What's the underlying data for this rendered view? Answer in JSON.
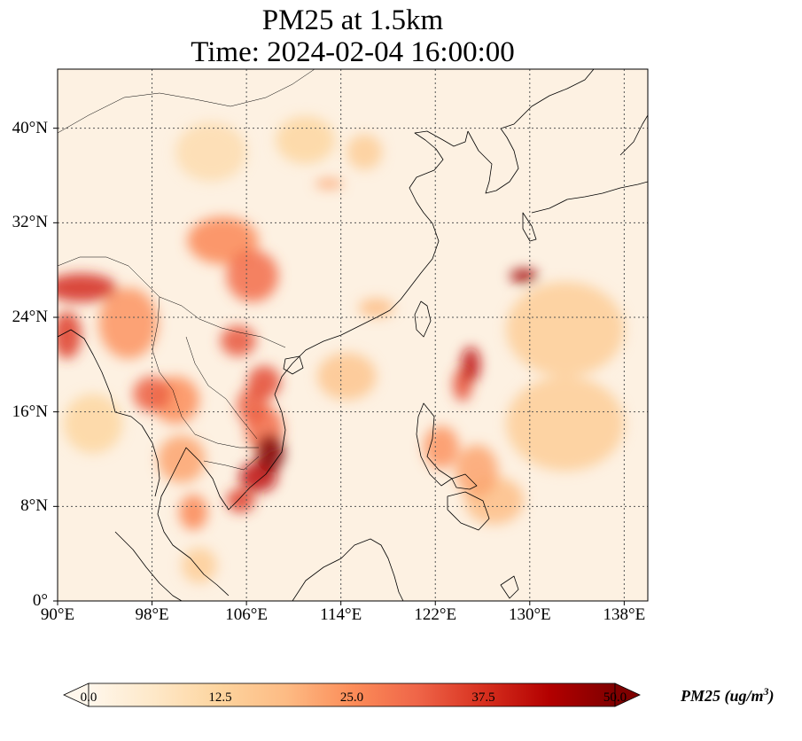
{
  "title": {
    "line1": "PM25 at 1.5km",
    "line2": "Time: 2024-02-04 16:00:00"
  },
  "map": {
    "projection": "PlateCarree",
    "lon_range": [
      90,
      140
    ],
    "lat_range": [
      0,
      45
    ],
    "gridlines": "dotted",
    "lat_ticks": [
      {
        "value": 0,
        "label": "0°"
      },
      {
        "value": 8,
        "label": "8°N"
      },
      {
        "value": 16,
        "label": "16°N"
      },
      {
        "value": 24,
        "label": "24°N"
      },
      {
        "value": 32,
        "label": "32°N"
      },
      {
        "value": 40,
        "label": "40°N"
      }
    ],
    "lon_ticks": [
      {
        "value": 90,
        "label": "90°E"
      },
      {
        "value": 98,
        "label": "98°E"
      },
      {
        "value": 106,
        "label": "106°E"
      },
      {
        "value": 114,
        "label": "114°E"
      },
      {
        "value": 122,
        "label": "122°E"
      },
      {
        "value": 130,
        "label": "130°E"
      },
      {
        "value": 138,
        "label": "138°E"
      }
    ],
    "colormap": "OrRd",
    "hotspots": [
      {
        "lon": 108.0,
        "lat": 12.5,
        "value": 50,
        "rx": 1.2,
        "ry": 1.6
      },
      {
        "lon": 107.0,
        "lat": 10.5,
        "value": 42,
        "rx": 1.6,
        "ry": 1.3
      },
      {
        "lon": 105.5,
        "lat": 8.5,
        "value": 36,
        "rx": 1.2,
        "ry": 1.0
      },
      {
        "lon": 107.5,
        "lat": 14.5,
        "value": 30,
        "rx": 1.6,
        "ry": 2.0
      },
      {
        "lon": 106.5,
        "lat": 16.5,
        "value": 32,
        "rx": 1.3,
        "ry": 1.6
      },
      {
        "lon": 107.5,
        "lat": 18.5,
        "value": 34,
        "rx": 1.4,
        "ry": 1.4
      },
      {
        "lon": 105.3,
        "lat": 22.0,
        "value": 33,
        "rx": 1.5,
        "ry": 1.3
      },
      {
        "lon": 106.5,
        "lat": 27.5,
        "value": 30,
        "rx": 2.2,
        "ry": 2.2
      },
      {
        "lon": 104.0,
        "lat": 30.5,
        "value": 26,
        "rx": 3.0,
        "ry": 2.0
      },
      {
        "lon": 92.0,
        "lat": 26.5,
        "value": 38,
        "rx": 3.0,
        "ry": 1.2
      },
      {
        "lon": 90.8,
        "lat": 22.5,
        "value": 36,
        "rx": 1.2,
        "ry": 2.0
      },
      {
        "lon": 96.0,
        "lat": 23.5,
        "value": 24,
        "rx": 2.5,
        "ry": 3.0
      },
      {
        "lon": 98.0,
        "lat": 17.5,
        "value": 32,
        "rx": 1.6,
        "ry": 1.5
      },
      {
        "lon": 100.0,
        "lat": 17.0,
        "value": 25,
        "rx": 2.0,
        "ry": 2.0
      },
      {
        "lon": 100.5,
        "lat": 12.0,
        "value": 22,
        "rx": 2.0,
        "ry": 2.0
      },
      {
        "lon": 101.5,
        "lat": 7.5,
        "value": 26,
        "rx": 1.2,
        "ry": 1.5
      },
      {
        "lon": 125.0,
        "lat": 20.0,
        "value": 42,
        "rx": 0.8,
        "ry": 1.5
      },
      {
        "lon": 124.3,
        "lat": 18.3,
        "value": 34,
        "rx": 0.8,
        "ry": 1.4
      },
      {
        "lon": 129.5,
        "lat": 27.5,
        "value": 46,
        "rx": 1.2,
        "ry": 0.6
      },
      {
        "lon": 122.5,
        "lat": 13.0,
        "value": 24,
        "rx": 1.5,
        "ry": 1.8
      },
      {
        "lon": 125.5,
        "lat": 11.0,
        "value": 22,
        "rx": 1.8,
        "ry": 2.2
      },
      {
        "lon": 127.0,
        "lat": 8.5,
        "value": 18,
        "rx": 2.5,
        "ry": 2.0
      },
      {
        "lon": 133.0,
        "lat": 15.0,
        "value": 14,
        "rx": 5.0,
        "ry": 4.0
      },
      {
        "lon": 133.0,
        "lat": 23.0,
        "value": 14,
        "rx": 5.0,
        "ry": 4.0
      },
      {
        "lon": 113.0,
        "lat": 35.3,
        "value": 22,
        "rx": 1.2,
        "ry": 0.4
      },
      {
        "lon": 114.5,
        "lat": 19.0,
        "value": 16,
        "rx": 2.5,
        "ry": 2.0
      },
      {
        "lon": 117.0,
        "lat": 24.8,
        "value": 18,
        "rx": 1.5,
        "ry": 0.8
      },
      {
        "lon": 111.0,
        "lat": 39.0,
        "value": 12,
        "rx": 2.5,
        "ry": 2.0
      },
      {
        "lon": 116.0,
        "lat": 38.0,
        "value": 14,
        "rx": 1.5,
        "ry": 1.5
      },
      {
        "lon": 102.0,
        "lat": 3.0,
        "value": 14,
        "rx": 1.5,
        "ry": 1.5
      },
      {
        "lon": 93.0,
        "lat": 15.0,
        "value": 12,
        "rx": 2.5,
        "ry": 2.5
      },
      {
        "lon": 103.0,
        "lat": 38.0,
        "value": 10,
        "rx": 3.0,
        "ry": 2.5
      }
    ]
  },
  "colorbar": {
    "min": 0,
    "max": 50,
    "extend": "both",
    "ticks": [
      "0.0",
      "12.5",
      "25.0",
      "37.5",
      "50.0"
    ],
    "label": "PM25 (ug/m",
    "label_sup": "3",
    "label_suffix": ")"
  }
}
